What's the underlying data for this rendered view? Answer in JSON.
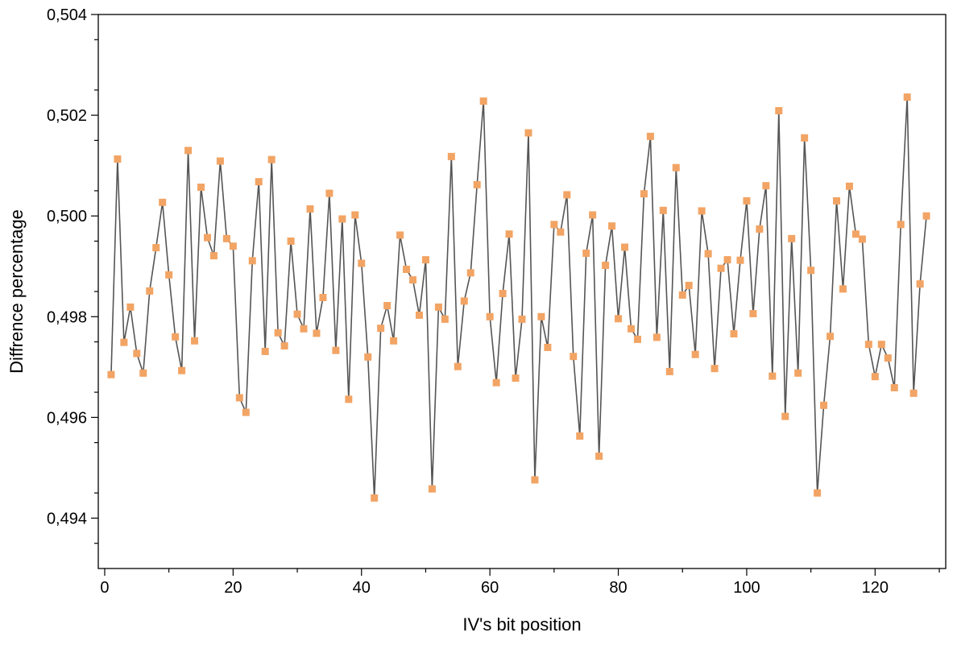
{
  "chart_data": {
    "type": "line",
    "title": "",
    "xlabel": "IV's bit position",
    "ylabel": "Diffrence percentage",
    "xlim": [
      -1,
      131
    ],
    "ylim": [
      0.493,
      0.504
    ],
    "x_ticks": [
      0,
      20,
      40,
      60,
      80,
      100,
      120
    ],
    "x_tick_labels": [
      "0",
      "20",
      "40",
      "60",
      "80",
      "100",
      "120"
    ],
    "y_ticks": [
      0.494,
      0.496,
      0.498,
      0.5,
      0.502,
      0.504
    ],
    "y_tick_labels": [
      "0,494",
      "0,496",
      "0,498",
      "0,500",
      "0,502",
      "0,504"
    ],
    "grid": false,
    "line_color": "#555555",
    "marker_color": "#f2a464",
    "marker": "square",
    "x": [
      1,
      2,
      3,
      4,
      5,
      6,
      7,
      8,
      9,
      10,
      11,
      12,
      13,
      14,
      15,
      16,
      17,
      18,
      19,
      20,
      21,
      22,
      23,
      24,
      25,
      26,
      27,
      28,
      29,
      30,
      31,
      32,
      33,
      34,
      35,
      36,
      37,
      38,
      39,
      40,
      41,
      42,
      43,
      44,
      45,
      46,
      47,
      48,
      49,
      50,
      51,
      52,
      53,
      54,
      55,
      56,
      57,
      58,
      59,
      60,
      61,
      62,
      63,
      64,
      65,
      66,
      67,
      68,
      69,
      70,
      71,
      72,
      73,
      74,
      75,
      76,
      77,
      78,
      79,
      80,
      81,
      82,
      83,
      84,
      85,
      86,
      87,
      88,
      89,
      90,
      91,
      92,
      93,
      94,
      95,
      96,
      97,
      98,
      99,
      100,
      101,
      102,
      103,
      104,
      105,
      106,
      107,
      108,
      109,
      110,
      111,
      112,
      113,
      114,
      115,
      116,
      117,
      118,
      119,
      120,
      121,
      122,
      123,
      124,
      125,
      126,
      127,
      128
    ],
    "values": [
      0.49685,
      0.50113,
      0.49749,
      0.49819,
      0.49727,
      0.49688,
      0.49851,
      0.49937,
      0.50027,
      0.49883,
      0.4976,
      0.49693,
      0.5013,
      0.49752,
      0.50057,
      0.49957,
      0.49921,
      0.50109,
      0.49955,
      0.4994,
      0.49639,
      0.4961,
      0.49911,
      0.50068,
      0.49731,
      0.50112,
      0.49768,
      0.49742,
      0.4995,
      0.49805,
      0.49776,
      0.50014,
      0.49767,
      0.49838,
      0.50045,
      0.49733,
      0.49994,
      0.49636,
      0.50002,
      0.49906,
      0.4972,
      0.4944,
      0.49777,
      0.49822,
      0.49752,
      0.49962,
      0.49894,
      0.49873,
      0.49803,
      0.49913,
      0.49458,
      0.49819,
      0.49795,
      0.50118,
      0.49701,
      0.49831,
      0.49887,
      0.50062,
      0.50228,
      0.498,
      0.49669,
      0.49846,
      0.49964,
      0.49678,
      0.49795,
      0.50165,
      0.49476,
      0.498,
      0.49739,
      0.49983,
      0.49968,
      0.50042,
      0.49721,
      0.49563,
      0.49926,
      0.50002,
      0.49523,
      0.49902,
      0.4998,
      0.49796,
      0.49938,
      0.49776,
      0.49755,
      0.50044,
      0.50158,
      0.49759,
      0.50011,
      0.49691,
      0.50096,
      0.49843,
      0.49862,
      0.49725,
      0.5001,
      0.49925,
      0.49697,
      0.49896,
      0.49913,
      0.49766,
      0.49912,
      0.5003,
      0.49806,
      0.49974,
      0.5006,
      0.49682,
      0.50209,
      0.49602,
      0.49955,
      0.49688,
      0.50155,
      0.49892,
      0.4945,
      0.49624,
      0.49761,
      0.5003,
      0.49855,
      0.50059,
      0.49964,
      0.49954,
      0.49745,
      0.49681,
      0.49745,
      0.49718,
      0.49659,
      0.49983,
      0.50236,
      0.49648,
      0.49865,
      0.5
    ]
  }
}
